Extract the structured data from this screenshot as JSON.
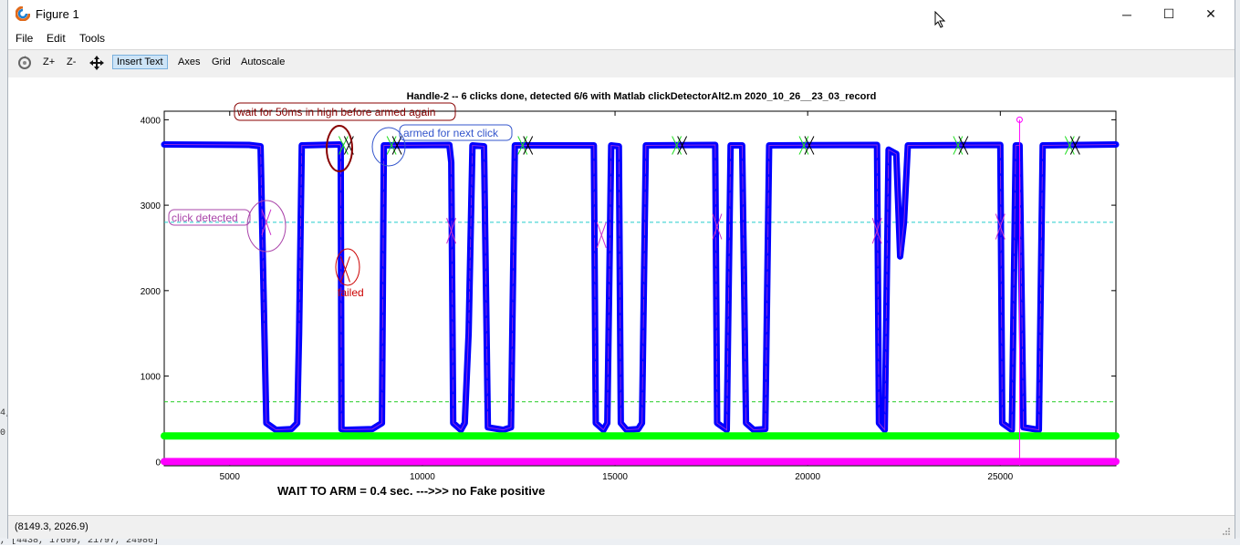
{
  "window": {
    "title": "Figure 1",
    "icon": "matlab-logo-icon",
    "controls": {
      "minimize": "─",
      "maximize": "☐",
      "close": "✕"
    }
  },
  "menu": {
    "file": "File",
    "edit": "Edit",
    "tools": "Tools"
  },
  "toolbar": {
    "rotate_icon": "rotate-icon",
    "zoom_in": "Z+",
    "zoom_out": "Z-",
    "pan_icon": "pan-icon",
    "insert_text": "Insert Text",
    "axes": "Axes",
    "grid": "Grid",
    "autoscale": "Autoscale"
  },
  "status": {
    "coords": "(8149.3, 2026.9)"
  },
  "background_fragments": {
    "left_top": "4,",
    "left_bottom": "0",
    "bottom_left": ", [4438, 17699, 21797, 24986]"
  },
  "chart_data": {
    "type": "line",
    "title": "Handle-2 -- 6 clicks done, detected 6/6 with Matlab clickDetectorAlt2.m    2020_10_26__23_03_record",
    "xlabel": "",
    "ylabel": "",
    "xlim": [
      3300,
      28000
    ],
    "ylim": [
      -50,
      4100
    ],
    "xticks": [
      5000,
      10000,
      15000,
      20000,
      25000
    ],
    "yticks": [
      0,
      1000,
      2000,
      3000,
      4000
    ],
    "grid": false,
    "thresholds": {
      "upper": 2800,
      "lower": 700
    },
    "baselines": {
      "green": 300,
      "magenta": 0
    },
    "series": [
      {
        "color": "#0000ff",
        "marker": "*",
        "points": [
          [
            3300,
            3710
          ],
          [
            5500,
            3705
          ],
          [
            5800,
            3690
          ],
          [
            5900,
            1500
          ],
          [
            5950,
            450
          ],
          [
            6200,
            370
          ],
          [
            6600,
            380
          ],
          [
            6750,
            450
          ],
          [
            6800,
            1500
          ],
          [
            6870,
            3700
          ],
          [
            7850,
            3710
          ],
          [
            7880,
            3700
          ],
          [
            7900,
            380
          ],
          [
            8000,
            370
          ],
          [
            8700,
            380
          ],
          [
            8950,
            450
          ],
          [
            9000,
            3700
          ],
          [
            10700,
            3705
          ],
          [
            10750,
            3500
          ],
          [
            10800,
            450
          ],
          [
            11000,
            370
          ],
          [
            11100,
            450
          ],
          [
            11200,
            1500
          ],
          [
            11300,
            3700
          ],
          [
            11600,
            3690
          ],
          [
            11700,
            400
          ],
          [
            12100,
            370
          ],
          [
            12300,
            400
          ],
          [
            12400,
            3700
          ],
          [
            14450,
            3700
          ],
          [
            14500,
            450
          ],
          [
            14700,
            370
          ],
          [
            14800,
            450
          ],
          [
            14900,
            3700
          ],
          [
            15100,
            3690
          ],
          [
            15150,
            450
          ],
          [
            15300,
            370
          ],
          [
            15600,
            380
          ],
          [
            15700,
            450
          ],
          [
            15800,
            3700
          ],
          [
            17600,
            3705
          ],
          [
            17650,
            450
          ],
          [
            17900,
            370
          ],
          [
            18000,
            3700
          ],
          [
            18300,
            3700
          ],
          [
            18400,
            450
          ],
          [
            18600,
            370
          ],
          [
            18900,
            380
          ],
          [
            19000,
            3700
          ],
          [
            21800,
            3705
          ],
          [
            21850,
            450
          ],
          [
            22000,
            370
          ],
          [
            22100,
            3650
          ],
          [
            22300,
            3600
          ],
          [
            22400,
            2400
          ],
          [
            22500,
            2800
          ],
          [
            22600,
            3700
          ],
          [
            25000,
            3705
          ],
          [
            25050,
            450
          ],
          [
            25300,
            370
          ],
          [
            25400,
            3700
          ],
          [
            25500,
            3700
          ],
          [
            25600,
            400
          ],
          [
            26000,
            370
          ],
          [
            26100,
            3700
          ],
          [
            28000,
            3710
          ]
        ]
      },
      {
        "color": "#00ff00",
        "points": [
          [
            3300,
            300
          ],
          [
            28000,
            300
          ]
        ]
      },
      {
        "color": "#ff00ff",
        "points": [
          [
            3300,
            0
          ],
          [
            28000,
            0
          ]
        ]
      }
    ],
    "detections": [
      {
        "x": 5950,
        "y": 2800,
        "color": "#cc33cc"
      },
      {
        "x": 10750,
        "y": 2700,
        "color": "#cc33cc"
      },
      {
        "x": 14650,
        "y": 2650,
        "color": "#cc33cc"
      },
      {
        "x": 17650,
        "y": 2750,
        "color": "#cc33cc"
      },
      {
        "x": 21800,
        "y": 2700,
        "color": "#cc33cc"
      },
      {
        "x": 25000,
        "y": 2750,
        "color": "#cc33cc"
      },
      {
        "x": 8000,
        "y": 2250,
        "color": "#cc0000"
      }
    ],
    "armed": [
      {
        "x": 7950,
        "y": 3700
      },
      {
        "x": 9200,
        "y": 3700
      },
      {
        "x": 12600,
        "y": 3700
      },
      {
        "x": 16600,
        "y": 3700
      },
      {
        "x": 19900,
        "y": 3700
      },
      {
        "x": 23900,
        "y": 3700
      },
      {
        "x": 26800,
        "y": 3700
      }
    ],
    "vline": {
      "x": 25500,
      "y_top": 4000
    },
    "annotations": [
      {
        "text": "wait for 50ms in high before armed again",
        "color": "#880000"
      },
      {
        "text": "armed for next click",
        "color": "#3355cc"
      },
      {
        "text": "click detected",
        "color": "#aa44aa"
      },
      {
        "text": "failed",
        "color": "#cc0000"
      }
    ],
    "footer": "WAIT TO ARM =  0.4 sec. --->>> no Fake positive"
  }
}
